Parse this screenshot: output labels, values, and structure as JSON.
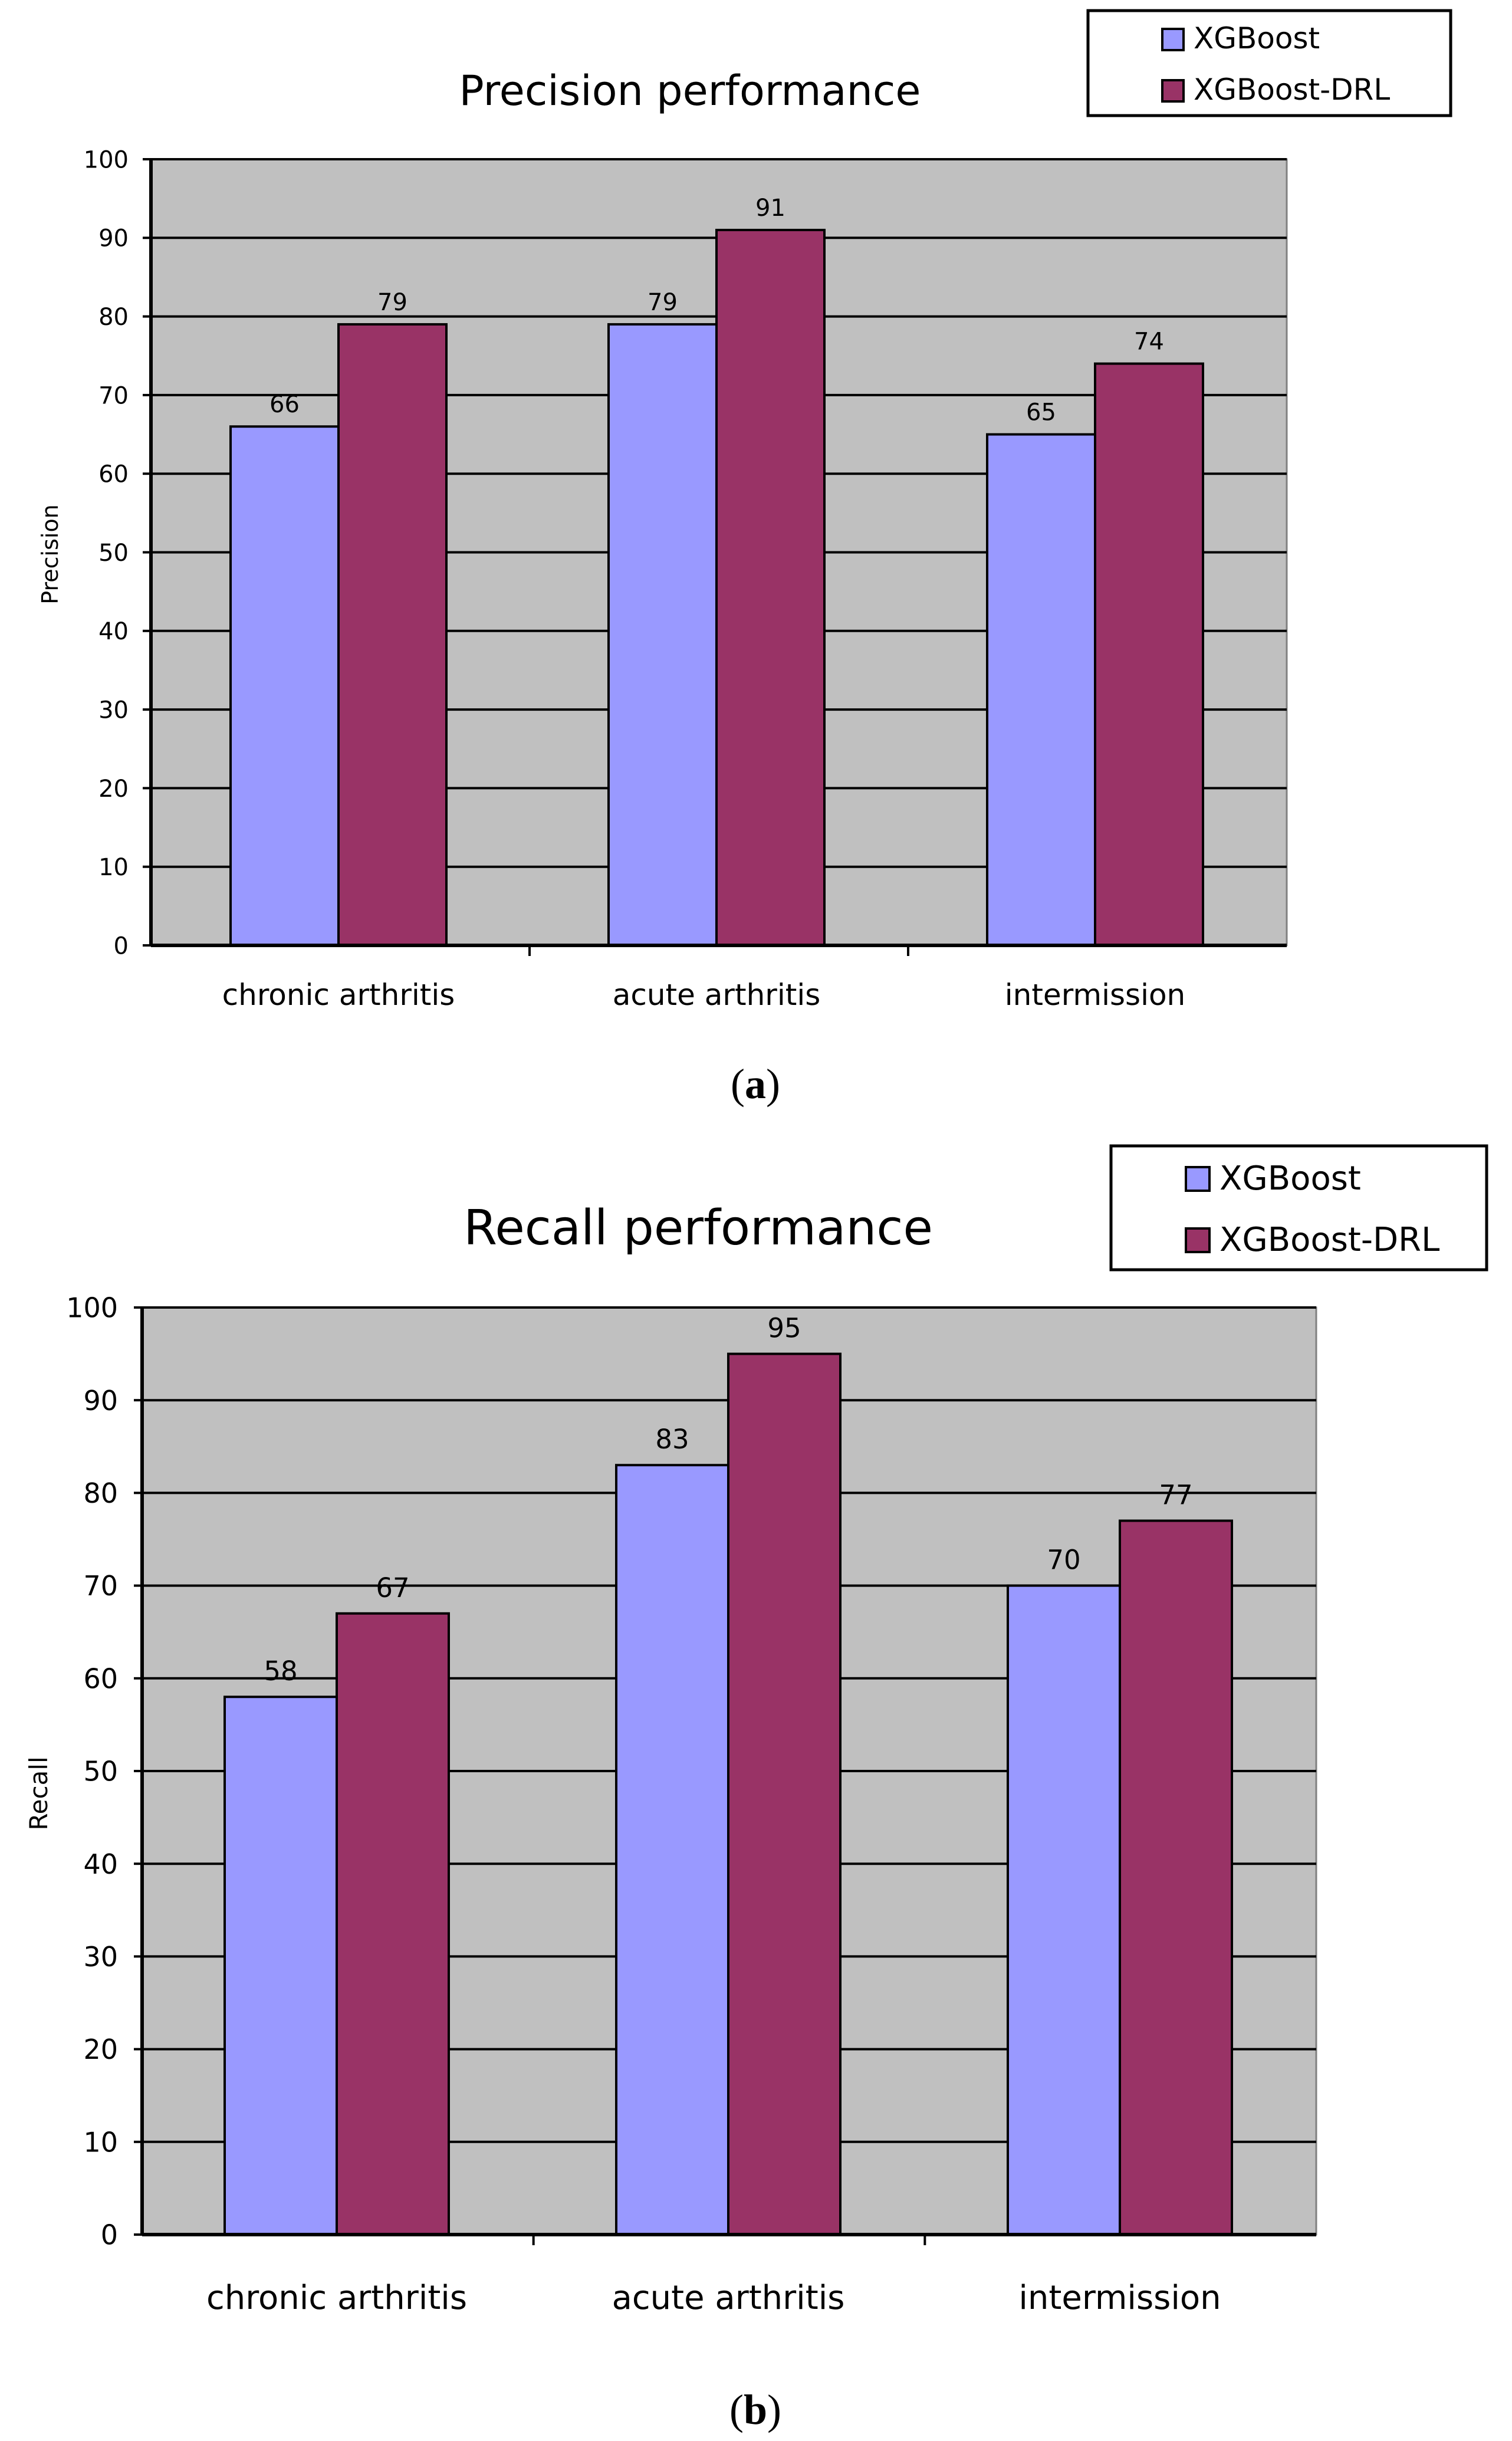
{
  "chart_data": [
    {
      "type": "bar",
      "panel_label": "a",
      "title": "Precision performance",
      "ylabel": "Precision",
      "xlabel": "",
      "ylim": [
        0,
        100
      ],
      "ytick_step": 10,
      "grid": true,
      "legend_position": "top-right",
      "categories": [
        "chronic arthritis",
        "acute arthritis",
        "intermission"
      ],
      "series": [
        {
          "name": "XGBoost",
          "color": "#9999FF",
          "values": [
            66,
            79,
            65
          ]
        },
        {
          "name": "XGBoost-DRL",
          "color": "#993366",
          "values": [
            79,
            91,
            74
          ]
        }
      ]
    },
    {
      "type": "bar",
      "panel_label": "b",
      "title": "Recall performance",
      "ylabel": "Recall",
      "xlabel": "",
      "ylim": [
        0,
        100
      ],
      "ytick_step": 10,
      "grid": true,
      "legend_position": "top-right",
      "categories": [
        "chronic arthritis",
        "acute arthritis",
        "intermission"
      ],
      "series": [
        {
          "name": "XGBoost",
          "color": "#9999FF",
          "values": [
            58,
            83,
            70
          ]
        },
        {
          "name": "XGBoost-DRL",
          "color": "#993366",
          "values": [
            67,
            95,
            77
          ]
        }
      ]
    }
  ],
  "colors": {
    "plot_background": "#C0C0C0",
    "gridline": "#000000",
    "bar_outline": "#000000",
    "page_background": "#FFFFFF"
  }
}
